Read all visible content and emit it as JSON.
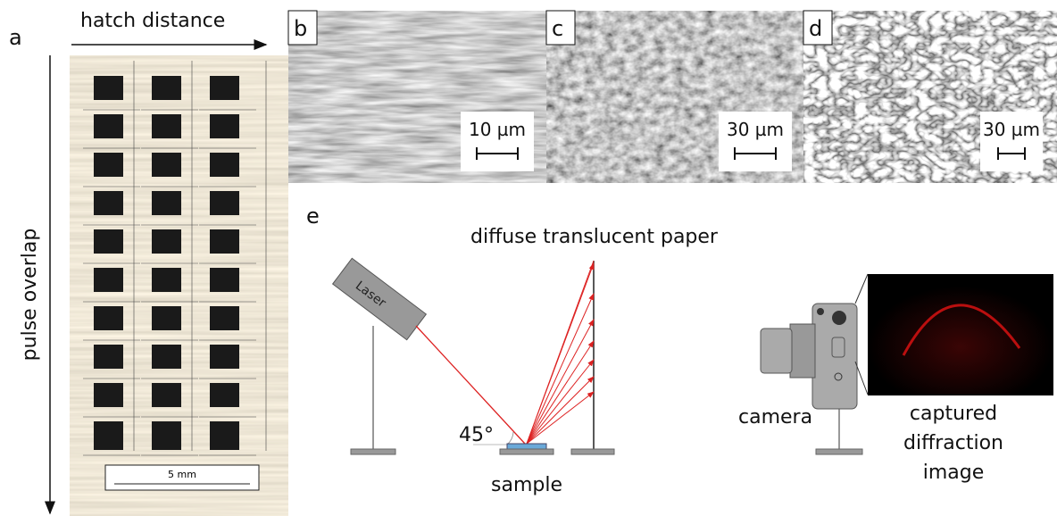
{
  "panels": {
    "a": {
      "label": "a",
      "x_axis": "hatch distance",
      "y_axis": "pulse overlap",
      "scale_bar": "5 mm"
    },
    "b": {
      "label": "b",
      "scale_bar": "10 µm"
    },
    "c": {
      "label": "c",
      "scale_bar": "30 µm"
    },
    "d": {
      "label": "d",
      "scale_bar": "30 µm"
    },
    "e": {
      "label": "e",
      "paper": "diffuse translucent paper",
      "laser": "Laser",
      "angle": "45°",
      "sample": "sample",
      "camera": "camera",
      "image_caption": [
        "captured",
        "diffraction",
        "image"
      ]
    }
  }
}
